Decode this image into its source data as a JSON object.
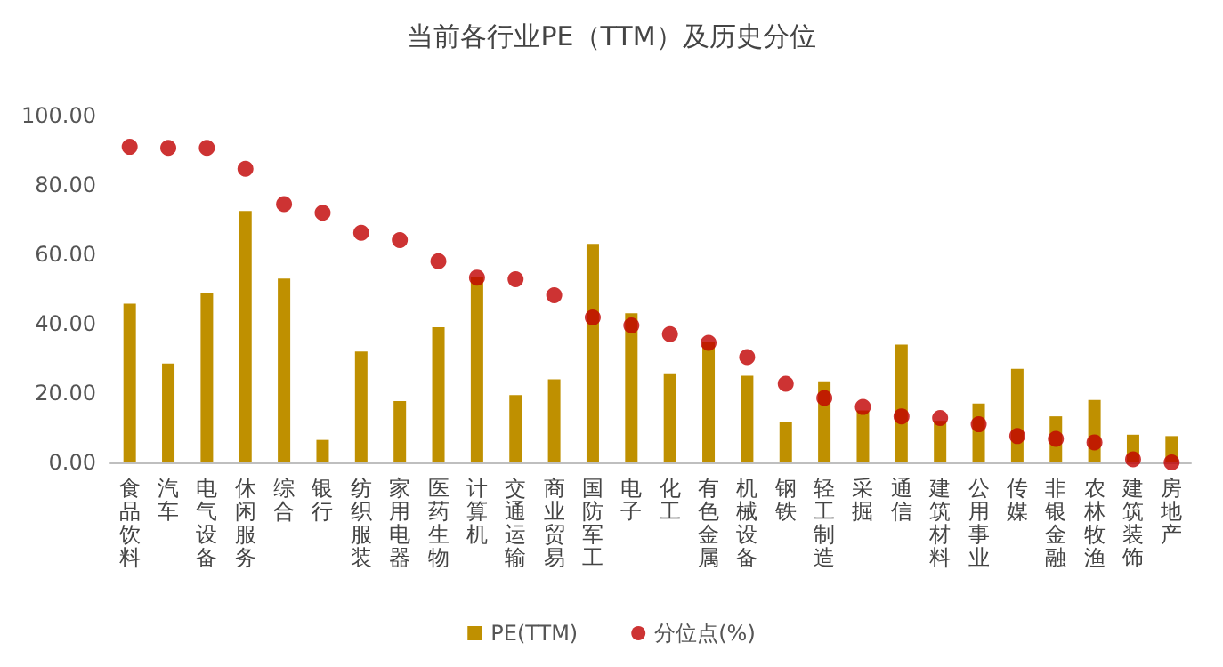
{
  "chart_data": {
    "type": "bar",
    "title": "当前各行业PE（TTM）及历史分位",
    "categories": [
      "食品饮料",
      "汽车",
      "电气设备",
      "休闲服务",
      "综合",
      "银行",
      "纺织服装",
      "家用电器",
      "医药生物",
      "计算机",
      "交通运输",
      "商业贸易",
      "国防军工",
      "电子",
      "化工",
      "有色金属",
      "机械设备",
      "钢铁",
      "轻工制造",
      "采掘",
      "通信",
      "建筑材料",
      "公用事业",
      "传媒",
      "非银金融",
      "农林牧渔",
      "建筑装饰",
      "房地产"
    ],
    "series": [
      {
        "name": "PE(TTM)",
        "color": "#bf9000",
        "values": [
          45.8,
          28.5,
          49,
          72.5,
          53,
          6.5,
          32,
          17.7,
          39,
          53.5,
          19.4,
          24,
          63,
          43,
          25.7,
          34.6,
          25,
          11.8,
          23.4,
          15,
          34,
          12,
          17,
          27,
          13.3,
          18,
          8,
          7.6
        ]
      },
      {
        "name": "分位点(%)",
        "type": "scatter",
        "color": "#c00000",
        "marker": "circle",
        "values": [
          91,
          90.7,
          90.7,
          84.7,
          74.5,
          72,
          66.2,
          64.1,
          58,
          53.3,
          52.8,
          48.2,
          41.8,
          39.5,
          37,
          34.5,
          30.4,
          22.7,
          18.6,
          16,
          13.3,
          12.8,
          11,
          7.6,
          6.8,
          5.8,
          0.9,
          0
        ]
      }
    ],
    "ylim": [
      0,
      100
    ],
    "yticks": [
      {
        "value": 0,
        "label": "0.00"
      },
      {
        "value": 20,
        "label": "20.00"
      },
      {
        "value": 40,
        "label": "40.00"
      },
      {
        "value": 60,
        "label": "60.00"
      },
      {
        "value": 80,
        "label": "80.00"
      },
      {
        "value": 100,
        "label": "100.00"
      }
    ],
    "grid": false,
    "legend": "bottom"
  }
}
